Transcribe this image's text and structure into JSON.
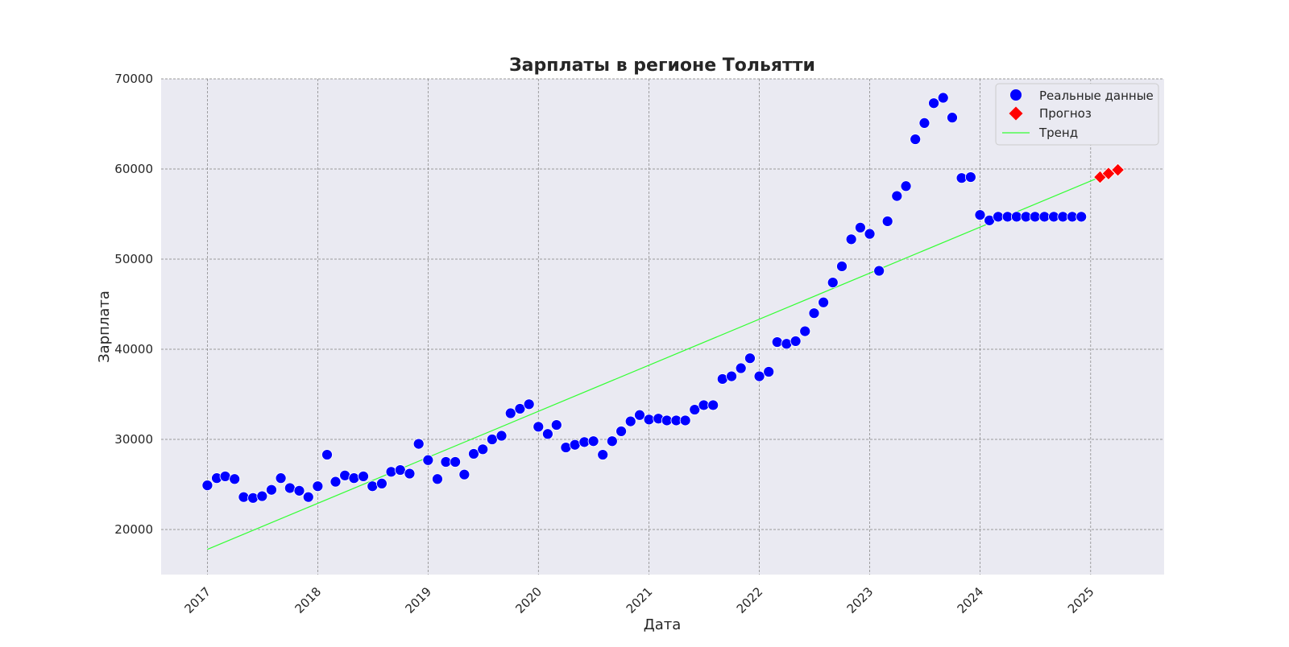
{
  "chart_data": {
    "type": "scatter",
    "title": "Зарплаты в регионе Тольятти",
    "xlabel": "Дата",
    "ylabel": "Зарплата",
    "ylim": [
      15000,
      70000
    ],
    "xlim": [
      "2016-08-01",
      "2025-09-01"
    ],
    "grid": true,
    "legend_position": "top-right",
    "x_tick_labels": [
      "2017",
      "2018",
      "2019",
      "2020",
      "2021",
      "2022",
      "2023",
      "2024",
      "2025"
    ],
    "y_tick_labels": [
      "20000",
      "30000",
      "40000",
      "50000",
      "60000",
      "70000"
    ],
    "colors": {
      "background": "#eaeaf2",
      "grid": "#7f7f7f",
      "actual": "#0000ff",
      "forecast": "#ff0000",
      "trend": "#33ff33"
    },
    "series": [
      {
        "name": "Реальные данные",
        "kind": "scatter",
        "marker": "circle",
        "points": [
          [
            "2017-01-01",
            24900
          ],
          [
            "2017-02-01",
            25700
          ],
          [
            "2017-03-01",
            25900
          ],
          [
            "2017-04-01",
            25600
          ],
          [
            "2017-05-01",
            23600
          ],
          [
            "2017-06-01",
            23500
          ],
          [
            "2017-07-01",
            23700
          ],
          [
            "2017-08-01",
            24400
          ],
          [
            "2017-09-01",
            25700
          ],
          [
            "2017-10-01",
            24600
          ],
          [
            "2017-11-01",
            24300
          ],
          [
            "2017-12-01",
            23600
          ],
          [
            "2018-01-01",
            24800
          ],
          [
            "2018-02-01",
            28300
          ],
          [
            "2018-03-01",
            25300
          ],
          [
            "2018-04-01",
            26000
          ],
          [
            "2018-05-01",
            25700
          ],
          [
            "2018-06-01",
            25900
          ],
          [
            "2018-07-01",
            24800
          ],
          [
            "2018-08-01",
            25100
          ],
          [
            "2018-09-01",
            26400
          ],
          [
            "2018-10-01",
            26600
          ],
          [
            "2018-11-01",
            26200
          ],
          [
            "2018-12-01",
            29500
          ],
          [
            "2019-01-01",
            27700
          ],
          [
            "2019-02-01",
            25600
          ],
          [
            "2019-03-01",
            27500
          ],
          [
            "2019-04-01",
            27500
          ],
          [
            "2019-05-01",
            26100
          ],
          [
            "2019-06-01",
            28400
          ],
          [
            "2019-07-01",
            28900
          ],
          [
            "2019-08-01",
            30000
          ],
          [
            "2019-09-01",
            30400
          ],
          [
            "2019-10-01",
            32900
          ],
          [
            "2019-11-01",
            33400
          ],
          [
            "2019-12-01",
            33900
          ],
          [
            "2020-01-01",
            31400
          ],
          [
            "2020-02-01",
            30600
          ],
          [
            "2020-03-01",
            31600
          ],
          [
            "2020-04-01",
            29100
          ],
          [
            "2020-05-01",
            29400
          ],
          [
            "2020-06-01",
            29700
          ],
          [
            "2020-07-01",
            29800
          ],
          [
            "2020-08-01",
            28300
          ],
          [
            "2020-09-01",
            29800
          ],
          [
            "2020-10-01",
            30900
          ],
          [
            "2020-11-01",
            32000
          ],
          [
            "2020-12-01",
            32700
          ],
          [
            "2021-01-01",
            32200
          ],
          [
            "2021-02-01",
            32300
          ],
          [
            "2021-03-01",
            32100
          ],
          [
            "2021-04-01",
            32100
          ],
          [
            "2021-05-01",
            32100
          ],
          [
            "2021-06-01",
            33300
          ],
          [
            "2021-07-01",
            33800
          ],
          [
            "2021-08-01",
            33800
          ],
          [
            "2021-09-01",
            36700
          ],
          [
            "2021-10-01",
            37000
          ],
          [
            "2021-11-01",
            37900
          ],
          [
            "2021-12-01",
            39000
          ],
          [
            "2022-01-01",
            37000
          ],
          [
            "2022-02-01",
            37500
          ],
          [
            "2022-03-01",
            40800
          ],
          [
            "2022-04-01",
            40600
          ],
          [
            "2022-05-01",
            40900
          ],
          [
            "2022-06-01",
            42000
          ],
          [
            "2022-07-01",
            44000
          ],
          [
            "2022-08-01",
            45200
          ],
          [
            "2022-09-01",
            47400
          ],
          [
            "2022-10-01",
            49200
          ],
          [
            "2022-11-01",
            52200
          ],
          [
            "2022-12-01",
            53500
          ],
          [
            "2023-01-01",
            52800
          ],
          [
            "2023-02-01",
            48700
          ],
          [
            "2023-03-01",
            54200
          ],
          [
            "2023-04-01",
            57000
          ],
          [
            "2023-05-01",
            58100
          ],
          [
            "2023-06-01",
            63300
          ],
          [
            "2023-07-01",
            65100
          ],
          [
            "2023-08-01",
            67300
          ],
          [
            "2023-09-01",
            67900
          ],
          [
            "2023-10-01",
            65700
          ],
          [
            "2023-11-01",
            59000
          ],
          [
            "2023-12-01",
            59100
          ],
          [
            "2024-01-01",
            54900
          ],
          [
            "2024-02-01",
            54300
          ],
          [
            "2024-03-01",
            54700
          ],
          [
            "2024-04-01",
            54700
          ],
          [
            "2024-05-01",
            54700
          ],
          [
            "2024-06-01",
            54700
          ],
          [
            "2024-07-01",
            54700
          ],
          [
            "2024-08-01",
            54700
          ],
          [
            "2024-09-01",
            54700
          ],
          [
            "2024-10-01",
            54700
          ],
          [
            "2024-11-01",
            54700
          ],
          [
            "2024-12-01",
            54700
          ]
        ]
      },
      {
        "name": "Прогноз",
        "kind": "scatter",
        "marker": "diamond",
        "points": [
          [
            "2025-02-01",
            59100
          ],
          [
            "2025-03-01",
            59500
          ],
          [
            "2025-04-01",
            59900
          ]
        ]
      },
      {
        "name": "Тренд",
        "kind": "line",
        "points": [
          [
            "2017-01-01",
            17800
          ],
          [
            "2025-02-01",
            59100
          ]
        ]
      }
    ]
  }
}
